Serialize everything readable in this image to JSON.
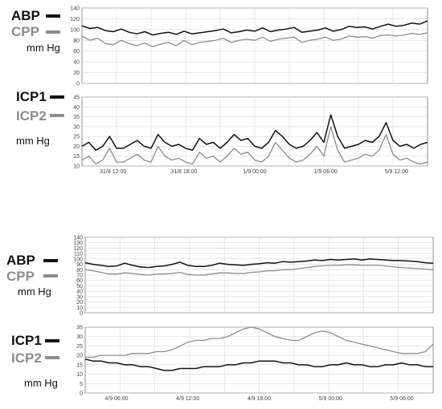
{
  "colors": {
    "black_series": "#111111",
    "gray_series": "#8c8c8c",
    "grid": "#d9d9d9",
    "frame": "#8c8c8c"
  },
  "chart_data": [
    {
      "type": "line",
      "grid": true,
      "ylim": [
        0,
        140
      ],
      "yticks": [
        "0",
        "20",
        "40",
        "60",
        "80",
        "100",
        "120",
        "140"
      ],
      "legend": [
        {
          "name": "ABP",
          "color": "#111111"
        },
        {
          "name": "CPP",
          "color": "#8c8c8c"
        }
      ],
      "unit": "mm Hg",
      "series": [
        {
          "name": "ABP",
          "color": "#111111",
          "values": [
            107,
            102,
            104,
            98,
            96,
            101,
            95,
            92,
            96,
            90,
            93,
            95,
            91,
            97,
            92,
            94,
            96,
            98,
            101,
            94,
            96,
            99,
            97,
            103,
            96,
            99,
            101,
            104,
            95,
            97,
            99,
            103,
            97,
            100,
            106,
            104,
            105,
            101,
            106,
            110,
            106,
            108,
            112,
            110,
            116
          ]
        },
        {
          "name": "CPP",
          "color": "#8c8c8c",
          "values": [
            88,
            80,
            84,
            74,
            72,
            80,
            74,
            70,
            75,
            68,
            73,
            76,
            70,
            80,
            72,
            76,
            78,
            80,
            84,
            76,
            80,
            82,
            80,
            86,
            78,
            82,
            84,
            86,
            76,
            80,
            82,
            86,
            80,
            82,
            88,
            86,
            87,
            84,
            89,
            90,
            88,
            90,
            93,
            91,
            94
          ]
        }
      ]
    },
    {
      "type": "line",
      "grid": true,
      "ylim": [
        10,
        45
      ],
      "yticks": [
        "10",
        "15",
        "20",
        "25",
        "30",
        "35",
        "40",
        "45"
      ],
      "xticks": [
        "31/8 12:00",
        "31/8 18:00",
        "1/9 00:00",
        "1/9 06:00",
        "5/9 12:00"
      ],
      "legend": [
        {
          "name": "ICP1",
          "color": "#111111"
        },
        {
          "name": "ICP2",
          "color": "#8c8c8c"
        }
      ],
      "unit": "mm Hg",
      "series": [
        {
          "name": "ICP1",
          "color": "#111111",
          "values": [
            20,
            22,
            18,
            20,
            25,
            19,
            19,
            21,
            23,
            20,
            19,
            26,
            22,
            20,
            21,
            19,
            18,
            24,
            21,
            22,
            19,
            22,
            26,
            23,
            24,
            20,
            19,
            22,
            28,
            25,
            21,
            19,
            20,
            23,
            27,
            22,
            36,
            25,
            19,
            20,
            21,
            23,
            22,
            25,
            32,
            23,
            20,
            21,
            19,
            21,
            22
          ]
        },
        {
          "name": "ICP2",
          "color": "#8c8c8c",
          "values": [
            13,
            15,
            11,
            13,
            19,
            12,
            12,
            14,
            16,
            13,
            12,
            20,
            15,
            13,
            14,
            12,
            11,
            17,
            14,
            15,
            12,
            15,
            19,
            16,
            17,
            13,
            12,
            15,
            22,
            18,
            14,
            12,
            13,
            16,
            20,
            15,
            30,
            18,
            12,
            13,
            14,
            16,
            15,
            18,
            26,
            16,
            13,
            14,
            12,
            11,
            12
          ]
        }
      ]
    },
    {
      "type": "line",
      "grid": true,
      "ylim": [
        0,
        140
      ],
      "yticks": [
        "0",
        "10",
        "20",
        "30",
        "40",
        "50",
        "60",
        "70",
        "80",
        "90",
        "100",
        "110",
        "120",
        "130",
        "140"
      ],
      "legend": [
        {
          "name": "ABP",
          "color": "#111111"
        },
        {
          "name": "CPP",
          "color": "#8c8c8c"
        }
      ],
      "unit": "mm Hg",
      "series": [
        {
          "name": "ABP",
          "color": "#111111",
          "values": [
            93,
            90,
            88,
            86,
            87,
            92,
            88,
            85,
            84,
            86,
            87,
            90,
            94,
            88,
            86,
            86,
            88,
            92,
            90,
            89,
            88,
            90,
            91,
            93,
            92,
            95,
            94,
            95,
            96,
            98,
            97,
            99,
            98,
            99,
            100,
            98,
            100,
            99,
            98,
            97,
            97,
            96,
            95,
            93,
            92
          ]
        },
        {
          "name": "CPP",
          "color": "#8c8c8c",
          "values": [
            80,
            78,
            75,
            72,
            72,
            74,
            73,
            71,
            70,
            72,
            72,
            73,
            75,
            71,
            70,
            70,
            72,
            74,
            74,
            73,
            73,
            75,
            76,
            78,
            78,
            80,
            80,
            82,
            84,
            86,
            87,
            88,
            88,
            89,
            89,
            88,
            88,
            88,
            87,
            85,
            84,
            83,
            82,
            81,
            80
          ]
        }
      ]
    },
    {
      "type": "line",
      "grid": true,
      "ylim": [
        0,
        35
      ],
      "yticks": [
        "0",
        "5",
        "10",
        "15",
        "20",
        "25",
        "30",
        "35"
      ],
      "xticks": [
        "4/9 06:00",
        "4/9 12:00",
        "4/9 18:00",
        "5/9 00:00",
        "5/9 06:00"
      ],
      "legend": [
        {
          "name": "ICP1",
          "color": "#111111"
        },
        {
          "name": "ICP2",
          "color": "#8c8c8c"
        }
      ],
      "unit": "mm Hg",
      "series": [
        {
          "name": "ICP1",
          "color": "#111111",
          "values": [
            18,
            17,
            17,
            16,
            16,
            15,
            15,
            14,
            14,
            13,
            12,
            12,
            13,
            13,
            13,
            14,
            14,
            14,
            15,
            15,
            16,
            16,
            17,
            17,
            17,
            16,
            16,
            15,
            15,
            14,
            14,
            15,
            15,
            16,
            15,
            15,
            14,
            14,
            15,
            15,
            16,
            15,
            15,
            14,
            14
          ]
        },
        {
          "name": "ICP2",
          "color": "#8c8c8c",
          "values": [
            19,
            19,
            20,
            20,
            20,
            20,
            21,
            21,
            21,
            22,
            22,
            23,
            25,
            27,
            28,
            28,
            29,
            29,
            30,
            32,
            34,
            35,
            34,
            32,
            30,
            29,
            28,
            28,
            30,
            32,
            33,
            32,
            30,
            28,
            27,
            26,
            25,
            24,
            23,
            22,
            21,
            21,
            21,
            22,
            26
          ]
        }
      ]
    }
  ]
}
